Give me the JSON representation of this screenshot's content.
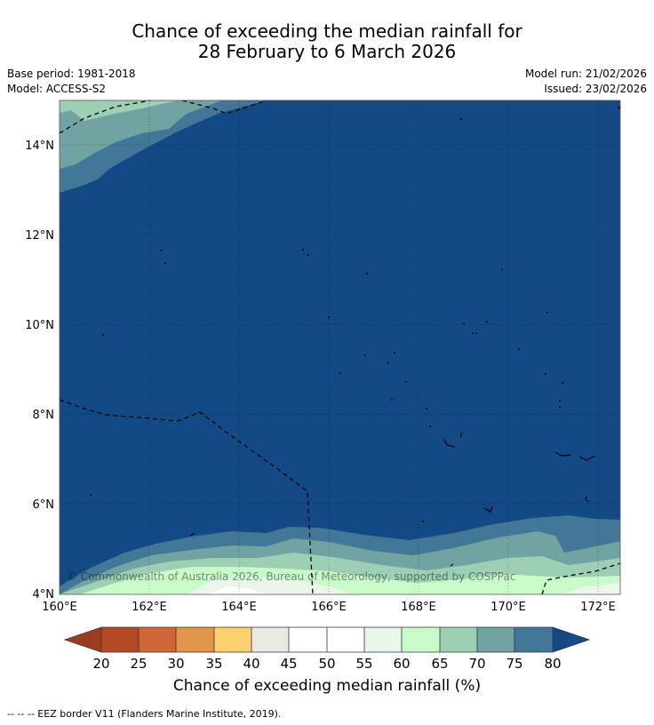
{
  "title": {
    "line1": "Chance of exceeding the median rainfall for",
    "line2": "28 February to 6 March 2026"
  },
  "meta": {
    "base_period": "Base period: 1981-2018",
    "model": "Model: ACCESS-S2",
    "model_run": "Model run: 21/02/2026",
    "issued": "Issued: 23/02/2026"
  },
  "map": {
    "lat_labels": [
      "14°N",
      "12°N",
      "10°N",
      "8°N",
      "6°N",
      "4°N"
    ],
    "lon_labels": [
      "160°E",
      "162°E",
      "164°E",
      "166°E",
      "168°E",
      "170°E",
      "172°E"
    ],
    "copyright": "© Commonwealth of Australia 2026, Bureau of Meteorology, supported by COSPPac"
  },
  "colorbar": {
    "labels": [
      "20",
      "25",
      "30",
      "35",
      "40",
      "45",
      "50",
      "55",
      "60",
      "65",
      "70",
      "75",
      "80"
    ],
    "colors": {
      "below_20": "#9c3b1d",
      "20_25": "#b34a25",
      "25_30": "#cf6637",
      "30_35": "#e1954b",
      "35_40": "#fdd06e",
      "40_45": "#ece8e4",
      "45_50": "#ffffff",
      "50_55": "#ffffff",
      "55_60": "#e9f6e9",
      "60_65": "#c9fac9",
      "65_70": "#9dcfb4",
      "70_75": "#71a3a3",
      "75_80": "#427798",
      "above_80": "#134a85"
    },
    "title": "Chance of exceeding median rainfall (%)"
  },
  "footer": "--  --  -- EEZ border V11 (Flanders Marine Institute, 2019)."
}
